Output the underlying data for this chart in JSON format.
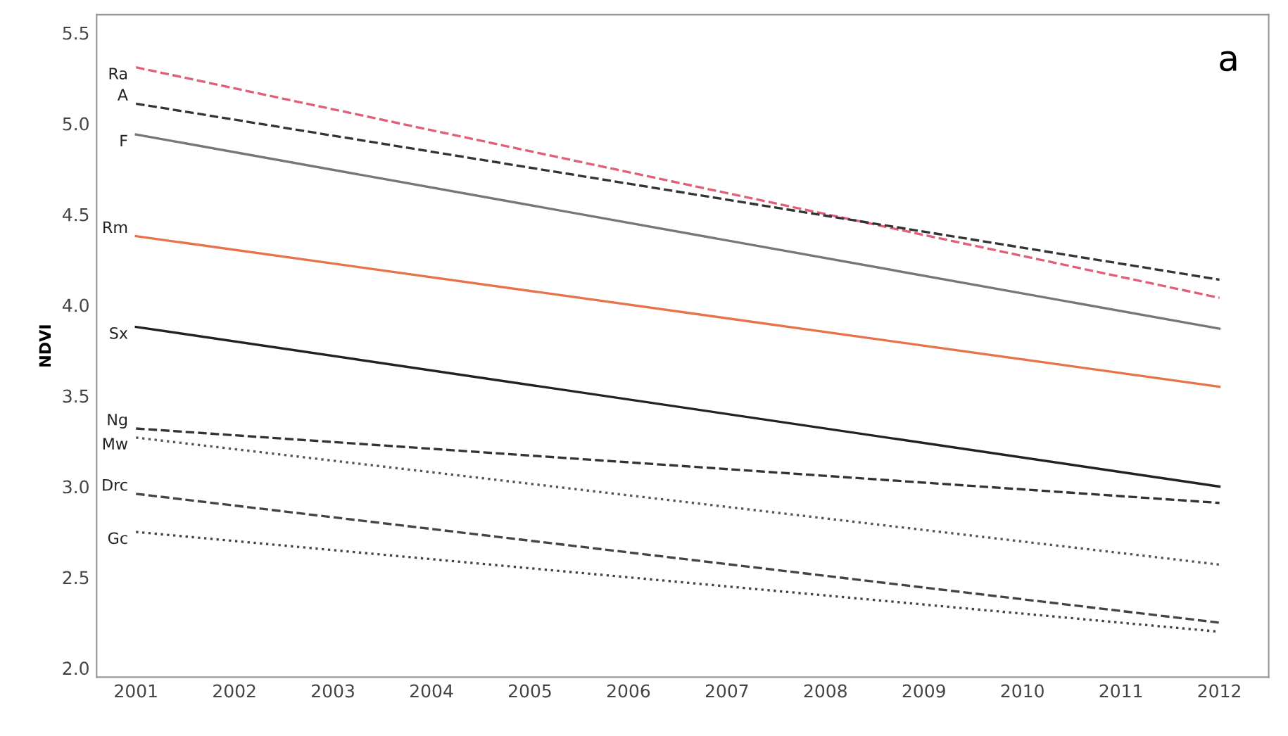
{
  "chart_data": {
    "type": "line",
    "ylabel": "NDVI",
    "annotations": [
      "a"
    ],
    "x": [
      2001,
      2012
    ],
    "xlim": [
      2000.6,
      2012.5
    ],
    "ylim": [
      1.95,
      5.6
    ],
    "xticks": [
      2001,
      2002,
      2003,
      2004,
      2005,
      2006,
      2007,
      2008,
      2009,
      2010,
      2011,
      2012
    ],
    "yticks": [
      {
        "value": 2.0,
        "label": "2.0"
      },
      {
        "value": 2.5,
        "label": "2.5"
      },
      {
        "value": 3.0,
        "label": "3.0"
      },
      {
        "value": 3.5,
        "label": "3.5"
      },
      {
        "value": 4.0,
        "label": "4.0"
      },
      {
        "value": 4.5,
        "label": "4.5"
      },
      {
        "value": 5.0,
        "label": "5.0"
      },
      {
        "value": 5.5,
        "label": "5.5"
      }
    ],
    "grid": false,
    "legend": false,
    "marker": "none",
    "series": [
      {
        "name": "Ra",
        "color": "#e0607a",
        "line_style": "dashed",
        "values": [
          5.31,
          4.04
        ]
      },
      {
        "name": "A",
        "color": "#333333",
        "line_style": "dashed",
        "values": [
          5.11,
          4.14
        ]
      },
      {
        "name": "F",
        "color": "#777777",
        "line_style": "solid",
        "values": [
          4.94,
          3.87
        ]
      },
      {
        "name": "Rm",
        "color": "#e8734a",
        "line_style": "solid",
        "values": [
          4.38,
          3.55
        ]
      },
      {
        "name": "Sx",
        "color": "#222222",
        "line_style": "solid",
        "values": [
          3.88,
          3.0
        ]
      },
      {
        "name": "Ng",
        "color": "#333333",
        "line_style": "dashed",
        "values": [
          3.32,
          2.91
        ]
      },
      {
        "name": "Mw",
        "color": "#555555",
        "line_style": "dotted",
        "values": [
          3.27,
          2.57
        ]
      },
      {
        "name": "Drc",
        "color": "#444444",
        "line_style": "dashed",
        "values": [
          2.96,
          2.25
        ]
      },
      {
        "name": "Gc",
        "color": "#444444",
        "line_style": "dotted",
        "values": [
          2.75,
          2.2
        ]
      }
    ]
  }
}
